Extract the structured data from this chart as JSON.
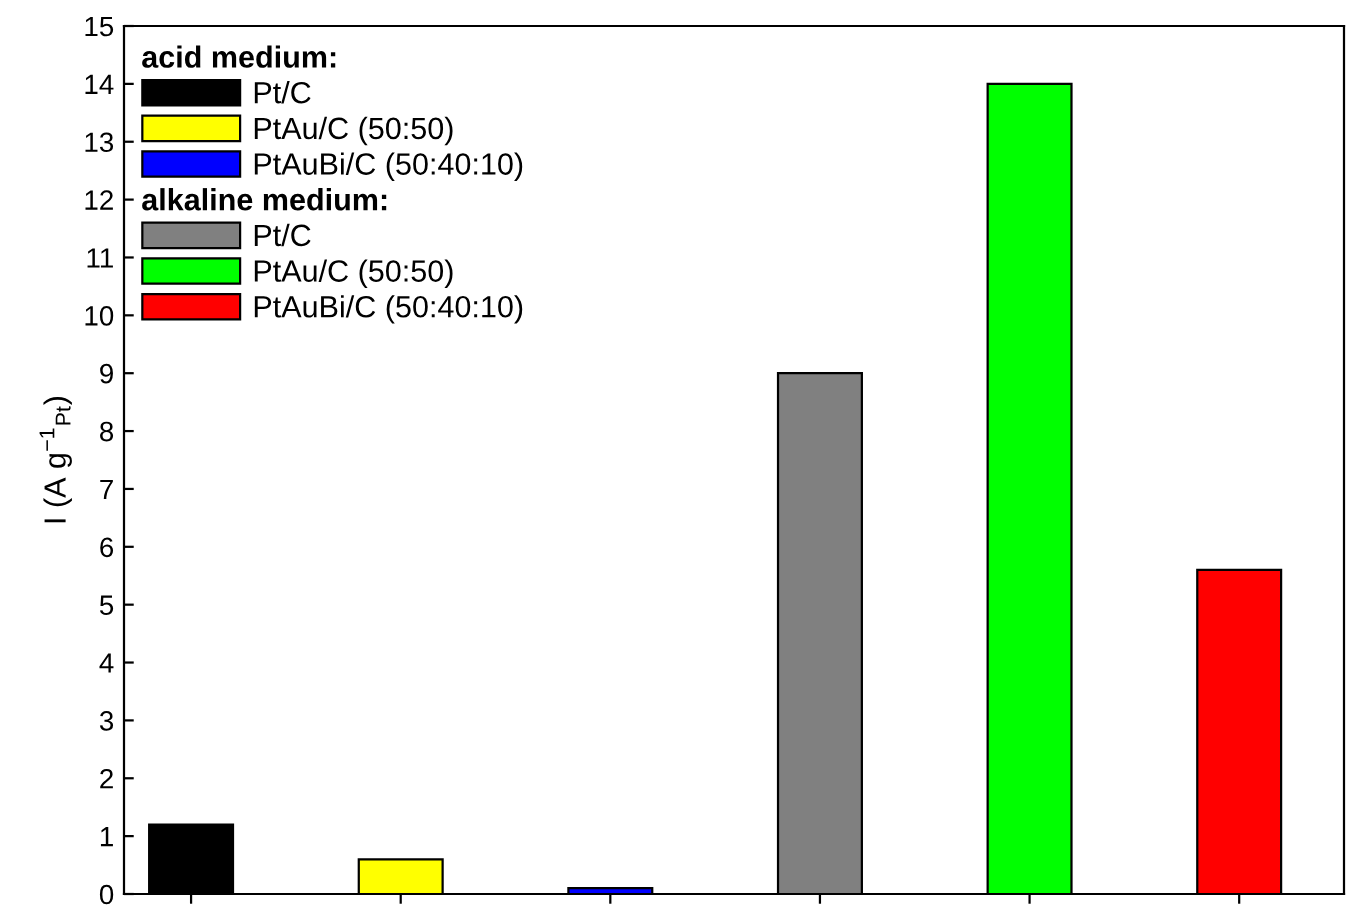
{
  "chart_data": {
    "type": "bar",
    "categories": [
      null,
      null,
      null,
      null,
      null,
      null
    ],
    "ylabel": "I (A g$^{−1}$$_{Pt}$)",
    "series": [
      {
        "name": "acid medium:",
        "values": [
          null,
          null,
          null,
          null,
          null,
          null
        ]
      },
      {
        "name": "Pt/C",
        "color": "#000000",
        "values": [
          1.2,
          null,
          null,
          null,
          null,
          null
        ]
      },
      {
        "name": "PtAu/C (50:50)",
        "color": "#ffff00",
        "values": [
          null,
          0.6,
          null,
          null,
          null,
          null
        ]
      },
      {
        "name": "PtAuBi/C (50:40:10)",
        "color": "#0000ff",
        "values": [
          null,
          null,
          0.1,
          null,
          null,
          null
        ]
      },
      {
        "name": "alkaline medium:",
        "values": [
          null,
          null,
          null,
          null,
          null,
          null
        ]
      },
      {
        "name": "Pt/C",
        "color": "#808080",
        "values": [
          null,
          null,
          null,
          9.0,
          null,
          null
        ]
      },
      {
        "name": "PtAu/C (50:50)",
        "color": "#00ff00",
        "values": [
          null,
          null,
          null,
          null,
          14.0,
          null
        ]
      },
      {
        "name": "PtAuBi/C (50:40:10)",
        "color": "#ff0000",
        "values": [
          null,
          null,
          null,
          null,
          null,
          5.6
        ]
      }
    ],
    "ylim": [
      0,
      15
    ],
    "yticks": [
      0,
      1,
      2,
      3,
      4,
      5,
      6,
      7,
      8,
      9,
      10,
      11,
      12,
      13,
      14,
      15
    ],
    "grid": false,
    "legend": "top left"
  }
}
